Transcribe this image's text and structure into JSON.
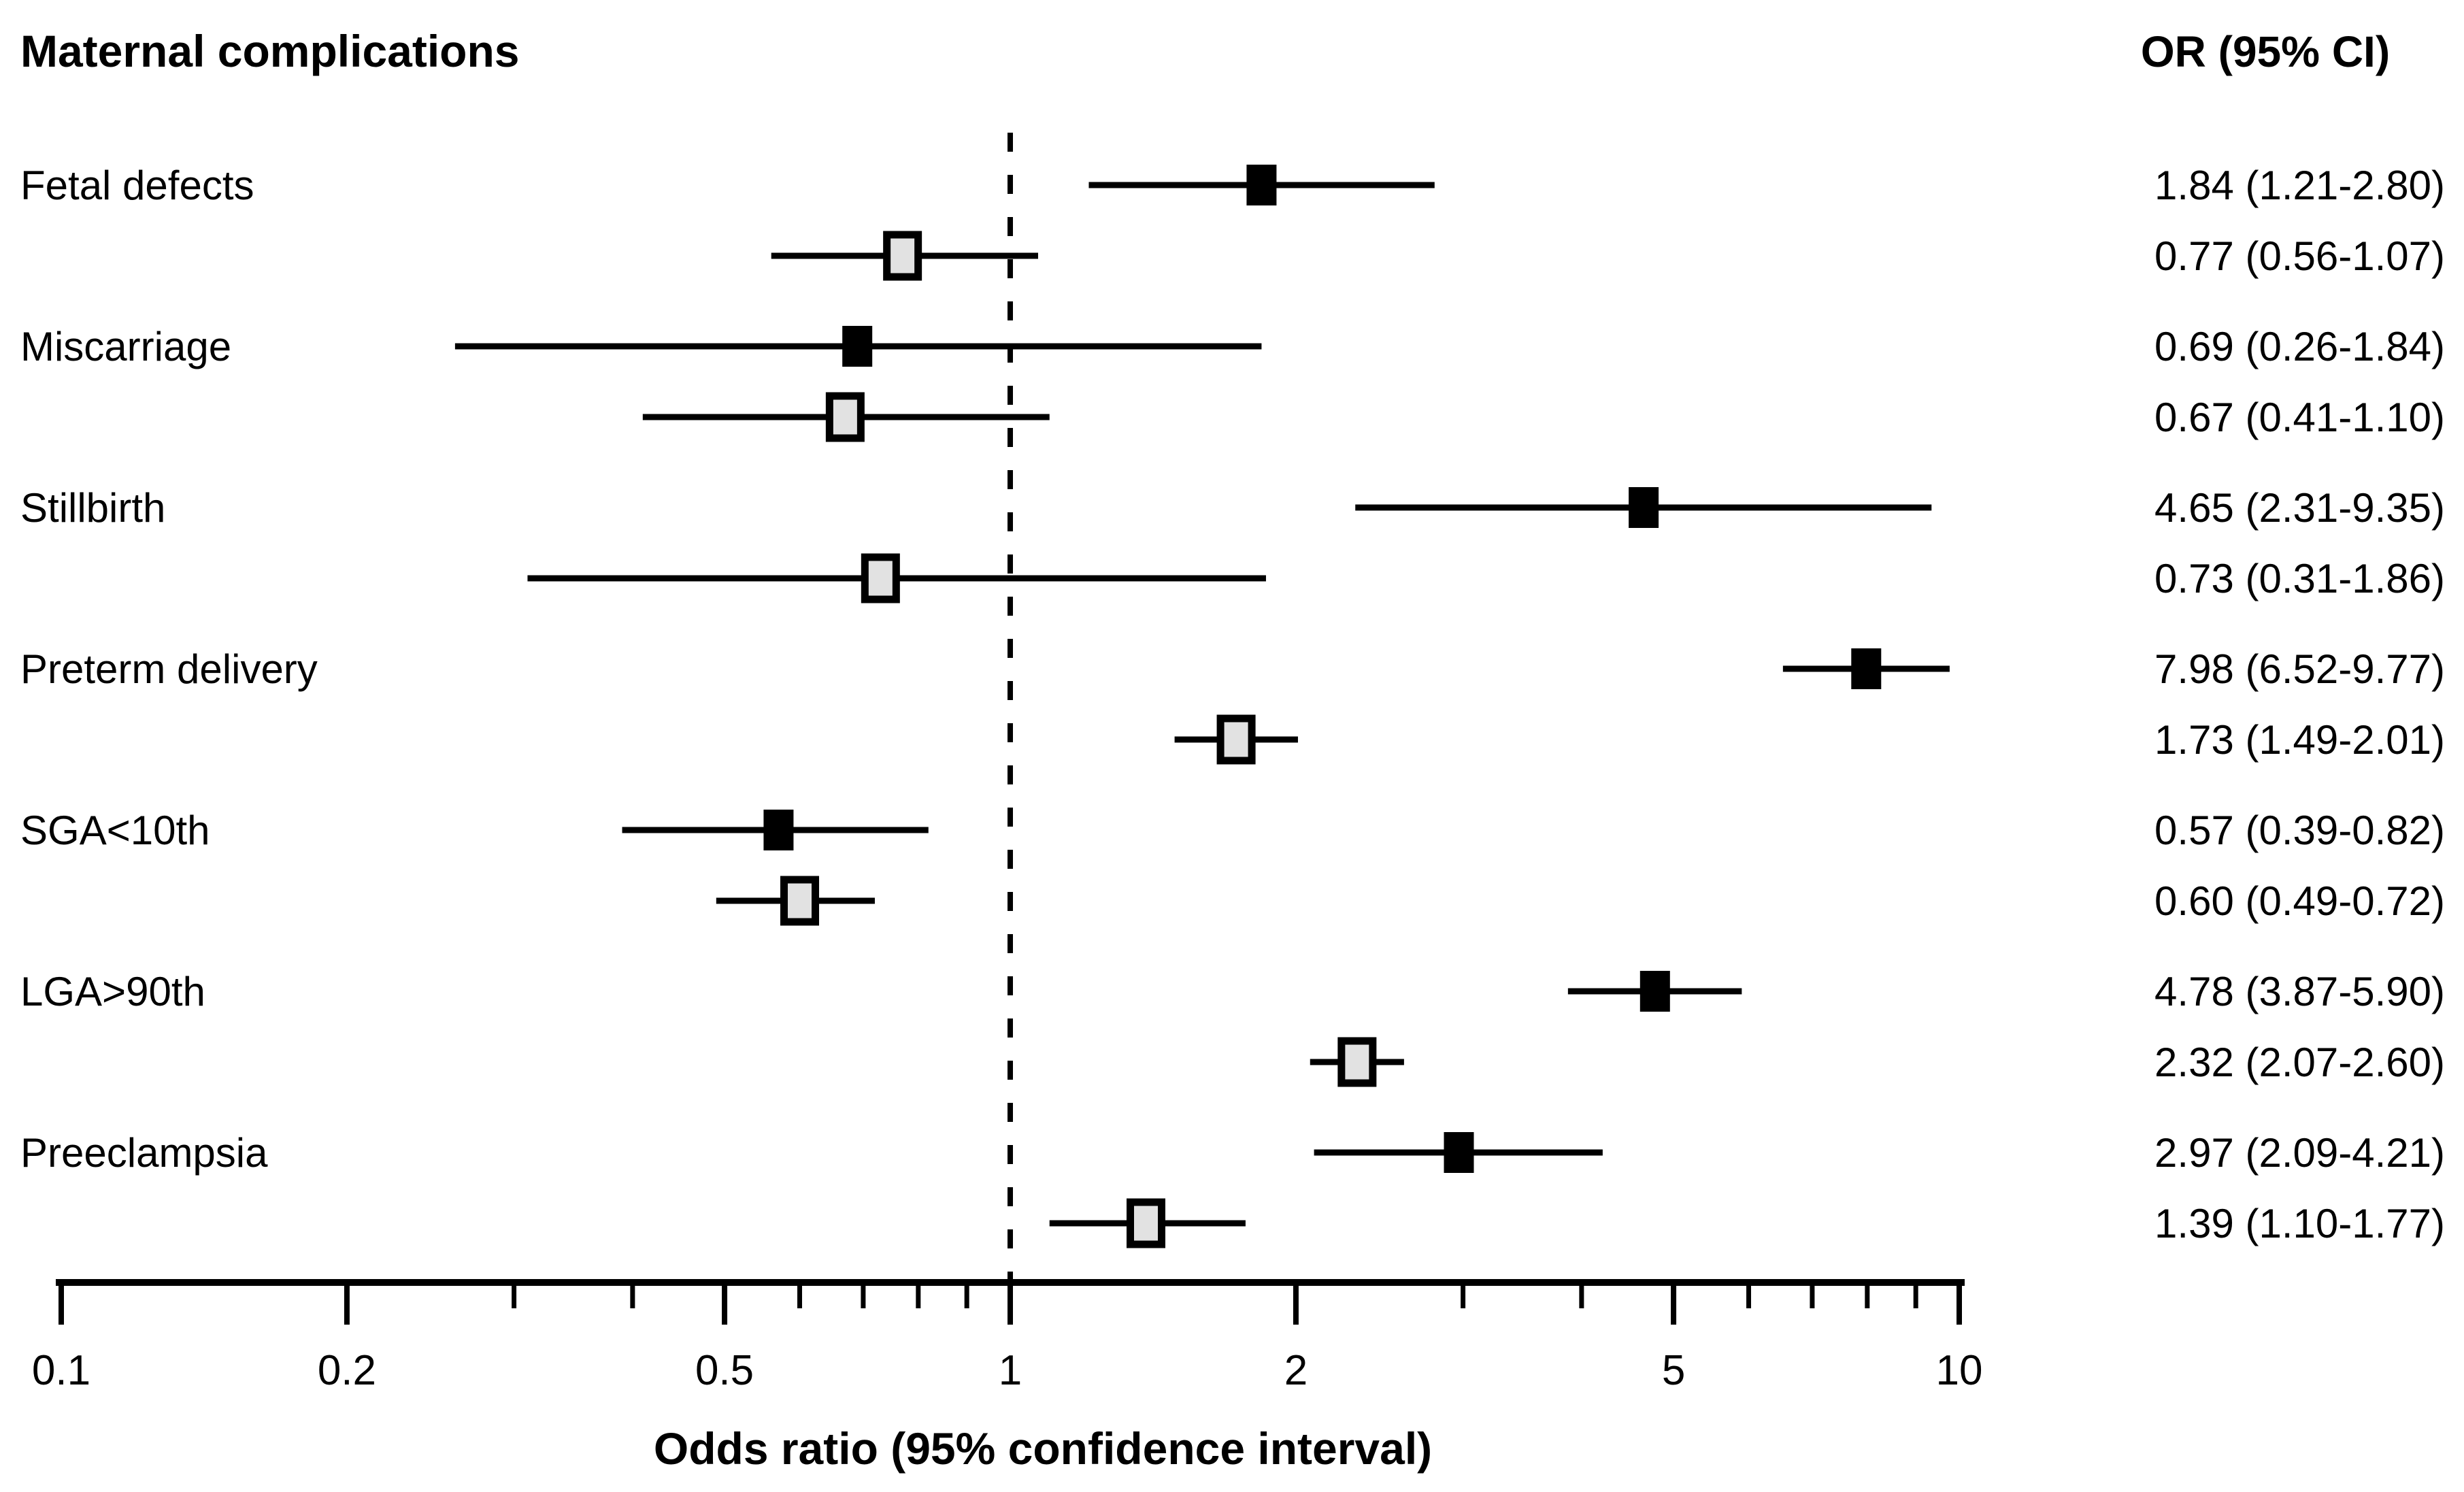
{
  "chart_data": {
    "type": "scatter",
    "variant": "forest-plot",
    "title": "Maternal complications",
    "right_column_header": "OR (95% CI)",
    "xlabel": "Odds ratio (95% confidence interval)",
    "x_scale": "log10",
    "xlim": [
      0.1,
      10
    ],
    "x_major_ticks": [
      0.1,
      0.2,
      0.5,
      1,
      2,
      5,
      10
    ],
    "x_major_tick_labels": [
      "0.1",
      "0.2",
      "0.5",
      "1",
      "2",
      "5",
      "10"
    ],
    "x_minor_ticks": [
      0.3,
      0.4,
      0.6,
      0.7,
      0.8,
      0.9,
      3,
      4,
      6,
      7,
      8,
      9
    ],
    "reference_line_x": 1,
    "grid": false,
    "legend": "none",
    "colors": {
      "primary_marker_fill": "#000000",
      "secondary_marker_fill": "#e2e2e2",
      "marker_border": "#000000",
      "line": "#000000",
      "text": "#000000",
      "background": "#ffffff"
    },
    "rows": [
      {
        "label": "Fetal defects",
        "estimates": [
          {
            "series": "primary",
            "or": 1.84,
            "ci_low": 1.21,
            "ci_high": 2.8,
            "display": "1.84 (1.21-2.80)"
          },
          {
            "series": "secondary",
            "or": 0.77,
            "ci_low": 0.56,
            "ci_high": 1.07,
            "display": "0.77 (0.56-1.07)"
          }
        ]
      },
      {
        "label": "Miscarriage",
        "estimates": [
          {
            "series": "primary",
            "or": 0.69,
            "ci_low": 0.26,
            "ci_high": 1.84,
            "display": "0.69 (0.26-1.84)"
          },
          {
            "series": "secondary",
            "or": 0.67,
            "ci_low": 0.41,
            "ci_high": 1.1,
            "display": "0.67 (0.41-1.10)"
          }
        ]
      },
      {
        "label": "Stillbirth",
        "estimates": [
          {
            "series": "primary",
            "or": 4.65,
            "ci_low": 2.31,
            "ci_high": 9.35,
            "display": "4.65 (2.31-9.35)"
          },
          {
            "series": "secondary",
            "or": 0.73,
            "ci_low": 0.31,
            "ci_high": 1.86,
            "display": "0.73 (0.31-1.86)"
          }
        ]
      },
      {
        "label": "Preterm delivery",
        "estimates": [
          {
            "series": "primary",
            "or": 7.98,
            "ci_low": 6.52,
            "ci_high": 9.77,
            "display": "7.98 (6.52-9.77)"
          },
          {
            "series": "secondary",
            "or": 1.73,
            "ci_low": 1.49,
            "ci_high": 2.01,
            "display": "1.73 (1.49-2.01)"
          }
        ]
      },
      {
        "label": "SGA<10th",
        "estimates": [
          {
            "series": "primary",
            "or": 0.57,
            "ci_low": 0.39,
            "ci_high": 0.82,
            "display": "0.57 (0.39-0.82)"
          },
          {
            "series": "secondary",
            "or": 0.6,
            "ci_low": 0.49,
            "ci_high": 0.72,
            "display": "0.60 (0.49-0.72)"
          }
        ]
      },
      {
        "label": "LGA>90th",
        "estimates": [
          {
            "series": "primary",
            "or": 4.78,
            "ci_low": 3.87,
            "ci_high": 5.9,
            "display": "4.78 (3.87-5.90)"
          },
          {
            "series": "secondary",
            "or": 2.32,
            "ci_low": 2.07,
            "ci_high": 2.6,
            "display": "2.32 (2.07-2.60)"
          }
        ]
      },
      {
        "label": "Preeclampsia",
        "estimates": [
          {
            "series": "primary",
            "or": 2.97,
            "ci_low": 2.09,
            "ci_high": 4.21,
            "display": "2.97 (2.09-4.21)"
          },
          {
            "series": "secondary",
            "or": 1.39,
            "ci_low": 1.1,
            "ci_high": 1.77,
            "display": "1.39 (1.10-1.77)"
          }
        ]
      }
    ]
  }
}
